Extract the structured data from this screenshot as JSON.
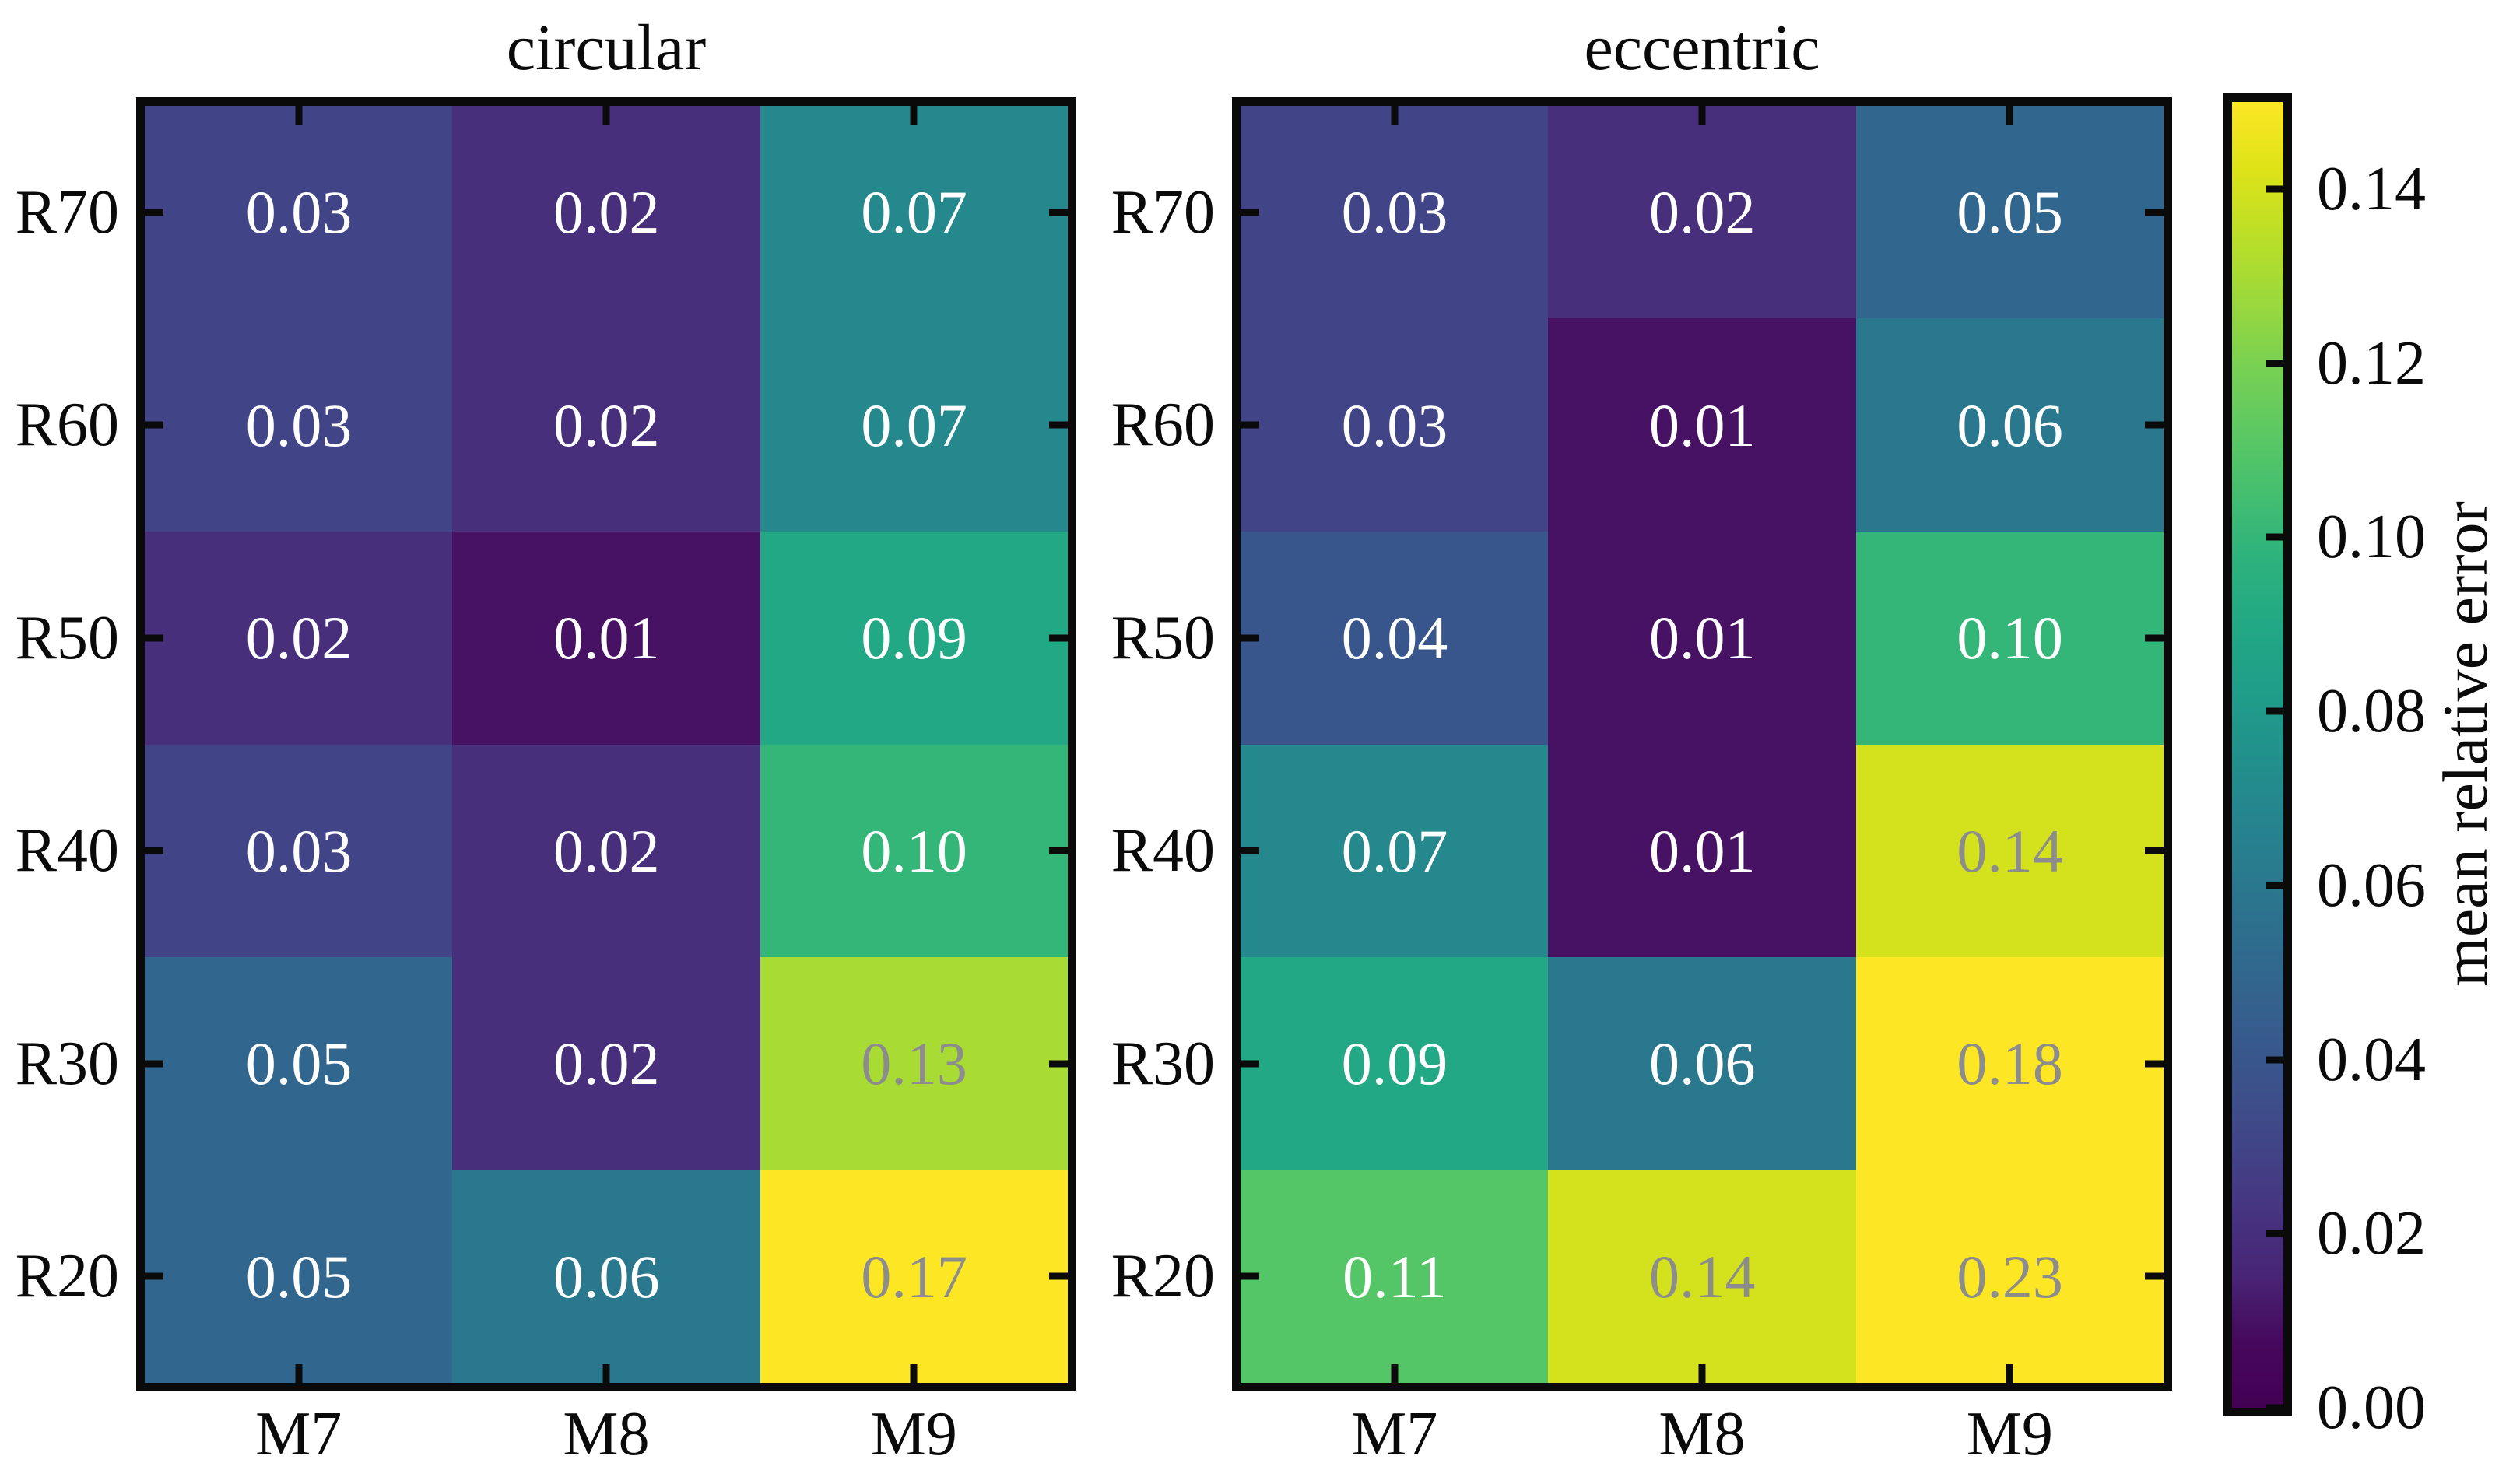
{
  "chart_data": {
    "type": "heatmap",
    "value_format_decimals": 2,
    "colormap": "viridis",
    "heatmaps": [
      {
        "title": "circular",
        "rows": [
          "R70",
          "R60",
          "R50",
          "R40",
          "R30",
          "R20"
        ],
        "columns": [
          "M7",
          "M8",
          "M9"
        ],
        "values": [
          [
            0.03,
            0.02,
            0.07
          ],
          [
            0.03,
            0.02,
            0.07
          ],
          [
            0.02,
            0.01,
            0.09
          ],
          [
            0.03,
            0.02,
            0.1
          ],
          [
            0.05,
            0.02,
            0.13
          ],
          [
            0.05,
            0.06,
            0.17
          ]
        ]
      },
      {
        "title": "eccentric",
        "rows": [
          "R70",
          "R60",
          "R50",
          "R40",
          "R30",
          "R20"
        ],
        "columns": [
          "M7",
          "M8",
          "M9"
        ],
        "values": [
          [
            0.03,
            0.02,
            0.05
          ],
          [
            0.03,
            0.01,
            0.06
          ],
          [
            0.04,
            0.01,
            0.1
          ],
          [
            0.07,
            0.01,
            0.14
          ],
          [
            0.09,
            0.06,
            0.18
          ],
          [
            0.11,
            0.14,
            0.23
          ]
        ]
      }
    ],
    "colorbar": {
      "label": "mean relative error",
      "vmin": 0.0,
      "vmax": 0.15,
      "tick_labels": [
        "0.00",
        "0.02",
        "0.04",
        "0.06",
        "0.08",
        "0.10",
        "0.12",
        "0.14"
      ]
    }
  },
  "colors": {
    "background": "#ffffff",
    "axis": "#0a0a0a",
    "cell_text_light": "#ffffff",
    "cell_text_dark": "#8c8c8c",
    "dark_text_threshold": 0.125,
    "viridis_stops": [
      [
        0.0,
        "#440154"
      ],
      [
        0.05,
        "#46085c"
      ],
      [
        0.1,
        "#482475"
      ],
      [
        0.15,
        "#463480"
      ],
      [
        0.2,
        "#414487"
      ],
      [
        0.25,
        "#3b528b"
      ],
      [
        0.3,
        "#355f8d"
      ],
      [
        0.35,
        "#2f6b8e"
      ],
      [
        0.4,
        "#2a788e"
      ],
      [
        0.45,
        "#25848e"
      ],
      [
        0.5,
        "#21918c"
      ],
      [
        0.55,
        "#1f9e89"
      ],
      [
        0.6,
        "#22a884"
      ],
      [
        0.65,
        "#2db27d"
      ],
      [
        0.7,
        "#44bf70"
      ],
      [
        0.75,
        "#5ec962"
      ],
      [
        0.8,
        "#7ad151"
      ],
      [
        0.85,
        "#9dd93b"
      ],
      [
        0.9,
        "#bddf26"
      ],
      [
        0.95,
        "#dfe318"
      ],
      [
        1.0,
        "#fde725"
      ]
    ]
  }
}
